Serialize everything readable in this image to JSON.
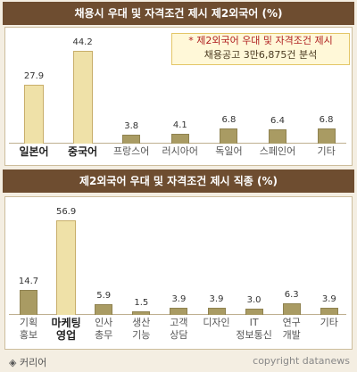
{
  "chart_data": [
    {
      "type": "bar",
      "title": "채용시 우대 및 자격조건 제시 제2외국어 (%)",
      "categories": [
        "일본어",
        "중국어",
        "프랑스어",
        "러시아어",
        "독일어",
        "스페인어",
        "기타"
      ],
      "values": [
        27.9,
        44.2,
        3.8,
        4.1,
        6.8,
        6.4,
        6.8
      ],
      "color": "#a99b63",
      "colors": [
        "#efe1a8",
        "#efe1a8",
        "#a99b63",
        "#a99b63",
        "#a99b63",
        "#a99b63",
        "#a99b63"
      ],
      "note": [
        "* 제2외국어 우대 및 자격조건 제시",
        "채용공고 3만6,875건 분석"
      ]
    },
    {
      "type": "bar",
      "title": "제2외국어 우대 및 자격조건 제시 직종 (%)",
      "categories": [
        "기획\n홍보",
        "마케팅\n영업",
        "인사\n총무",
        "생산\n기능",
        "고객\n상담",
        "디자인",
        "IT\n정보통신",
        "연구\n개발",
        "기타"
      ],
      "values": [
        14.7,
        56.9,
        5.9,
        1.5,
        3.9,
        3.9,
        3.0,
        6.3,
        3.9
      ],
      "value_labels": [
        "14.7",
        "56.9",
        "5.9",
        "1.5",
        "3.9",
        "3.9",
        "3.0",
        "6.3",
        "3.9"
      ],
      "color": "#a99b63",
      "colors": [
        "#a99b63",
        "#efe1a8",
        "#a99b63",
        "#a99b63",
        "#a99b63",
        "#a99b63",
        "#a99b63",
        "#a99b63",
        "#a99b63"
      ]
    }
  ],
  "footer": {
    "source": "◈ 커리어",
    "copyright": "copyright datanews"
  }
}
